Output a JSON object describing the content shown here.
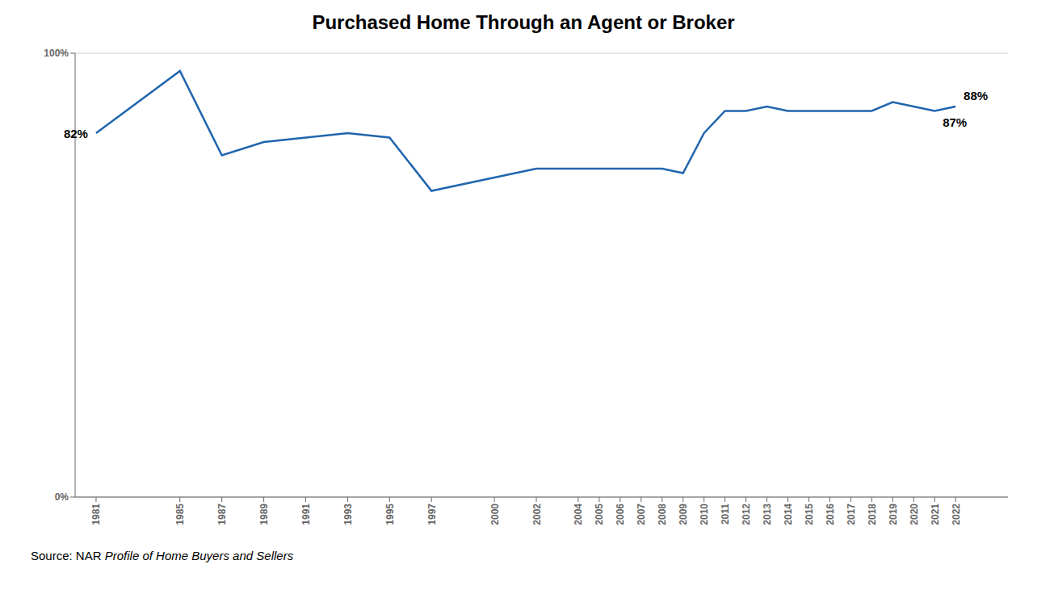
{
  "chart_data": {
    "type": "line",
    "title": "Purchased Home Through an Agent or Broker",
    "x": [
      1981,
      1985,
      1987,
      1989,
      1991,
      1993,
      1995,
      1997,
      2000,
      2002,
      2004,
      2005,
      2006,
      2007,
      2008,
      2009,
      2010,
      2011,
      2012,
      2013,
      2014,
      2015,
      2016,
      2017,
      2018,
      2019,
      2020,
      2021,
      2022
    ],
    "values": [
      82,
      96,
      77,
      80,
      81,
      82,
      81,
      69,
      72,
      74,
      74,
      74,
      74,
      74,
      74,
      73,
      82,
      87,
      87,
      88,
      87,
      87,
      87,
      87,
      87,
      89,
      88,
      87,
      88
    ],
    "color": "#2165AE",
    "xlim": [
      1980,
      2024.5
    ],
    "xticks": [
      1981,
      1985,
      1987,
      1989,
      1991,
      1993,
      1995,
      1997,
      2000,
      2002,
      2004,
      2005,
      2006,
      2007,
      2008,
      2009,
      2010,
      2011,
      2012,
      2013,
      2014,
      2015,
      2016,
      2017,
      2018,
      2019,
      2020,
      2021,
      2022
    ],
    "ylim": [
      0,
      100
    ],
    "yticks": [
      {
        "value": 0,
        "label": "0%"
      },
      {
        "value": 100,
        "label": "100%"
      }
    ],
    "grid": "y",
    "annotations": [
      {
        "x": 1981,
        "y": 82,
        "text": "82%"
      },
      {
        "x": 2021,
        "y": 87,
        "text": "87%"
      },
      {
        "x": 2022,
        "y": 88,
        "text": "88%"
      }
    ],
    "source": [
      "Source: NAR",
      "Profile of Home Buyers and Sellers"
    ]
  }
}
